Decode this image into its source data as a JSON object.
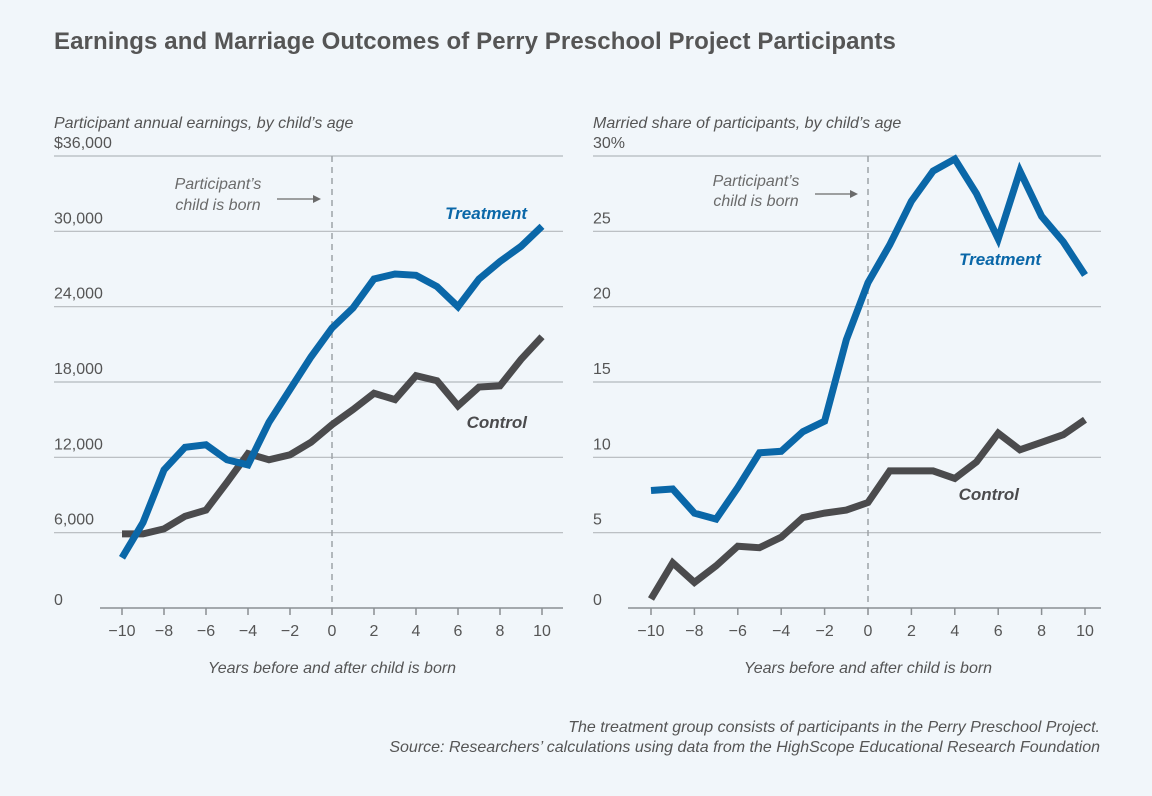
{
  "title": "Earnings and Marriage Outcomes of Perry Preschool Project Participants",
  "footnote": "The treatment group consists of participants in the Perry Preschool Project.",
  "source": "Source: Researchers’ calculations using data from the HighScope Educational Research Foundation",
  "colors": {
    "treatment": "#0a67a8",
    "control": "#4b4b4d"
  },
  "chart_data": [
    {
      "type": "line",
      "subtitle": "Participant annual earnings, by child’s age",
      "xlabel": "Years before and after child is born",
      "ylabel": "",
      "xlim": [
        -10,
        10
      ],
      "ylim": [
        0,
        36000
      ],
      "x_ticks": [
        -10,
        -8,
        -6,
        -4,
        -2,
        0,
        2,
        4,
        6,
        8,
        10
      ],
      "y_ticks": [
        0,
        6000,
        12000,
        18000,
        24000,
        30000,
        36000
      ],
      "y_tick_labels": [
        "0",
        "6,000",
        "12,000",
        "18,000",
        "24,000",
        "30,000",
        "$36,000"
      ],
      "grid": true,
      "annotation": {
        "lines": [
          "Participant’s",
          "child is born"
        ],
        "x": 0
      },
      "x": [
        -10,
        -9,
        -8,
        -7,
        -6,
        -5,
        -4,
        -3,
        -2,
        -1,
        0,
        1,
        2,
        3,
        4,
        5,
        6,
        7,
        8,
        9,
        10
      ],
      "series": [
        {
          "name": "Treatment",
          "color": "#0a67a8",
          "values": [
            4000,
            6800,
            11000,
            12800,
            13000,
            11800,
            11400,
            14800,
            17400,
            20000,
            22300,
            23900,
            26200,
            26600,
            26500,
            25600,
            24000,
            26200,
            27600,
            28800,
            30400
          ]
        },
        {
          "name": "Control",
          "color": "#4b4b4d",
          "values": [
            5900,
            5900,
            6300,
            7300,
            7800,
            10000,
            12300,
            11800,
            12200,
            13200,
            14600,
            15800,
            17100,
            16600,
            18500,
            18100,
            16100,
            17600,
            17700,
            19800,
            21600
          ]
        }
      ]
    },
    {
      "type": "line",
      "subtitle": "Married share of participants, by child’s age",
      "xlabel": "Years before and after child is born",
      "ylabel": "",
      "xlim": [
        -10,
        10
      ],
      "ylim": [
        0,
        30
      ],
      "x_ticks": [
        -10,
        -8,
        -6,
        -4,
        -2,
        0,
        2,
        4,
        6,
        8,
        10
      ],
      "y_ticks": [
        0,
        5,
        10,
        15,
        20,
        25,
        30
      ],
      "y_tick_labels": [
        "0",
        "5",
        "10",
        "15",
        "20",
        "25",
        "30%"
      ],
      "grid": true,
      "annotation": {
        "lines": [
          "Participant’s",
          "child is born"
        ],
        "x": 0
      },
      "x": [
        -10,
        -9,
        -8,
        -7,
        -6,
        -5,
        -4,
        -3,
        -2,
        -1,
        0,
        1,
        2,
        3,
        4,
        5,
        6,
        7,
        8,
        9,
        10
      ],
      "series": [
        {
          "name": "Treatment",
          "color": "#0a67a8",
          "values": [
            7.8,
            7.9,
            6.3,
            5.9,
            8.0,
            10.3,
            10.4,
            11.7,
            12.4,
            17.8,
            21.6,
            24.1,
            27.0,
            29.0,
            29.8,
            27.5,
            24.5,
            29.0,
            26.0,
            24.3,
            22.1
          ]
        },
        {
          "name": "Control",
          "color": "#4b4b4d",
          "values": [
            0.6,
            3.0,
            1.7,
            2.8,
            4.1,
            4.0,
            4.7,
            6.0,
            6.3,
            6.5,
            7.0,
            9.1,
            9.1,
            9.1,
            8.6,
            9.7,
            11.6,
            10.5,
            11.0,
            11.5,
            12.5
          ]
        }
      ]
    }
  ]
}
